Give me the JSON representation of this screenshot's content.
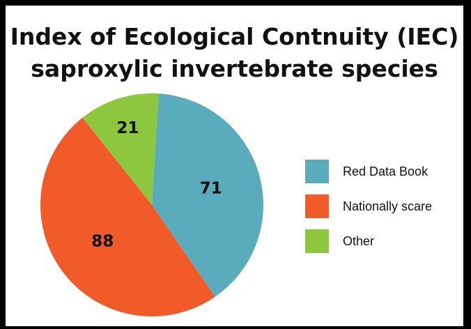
{
  "chart_data": {
    "type": "pie",
    "title_lines": [
      "Index of Ecological Contnuity (IEC)",
      "saproxylic invertebrate species"
    ],
    "categories": [
      "Red Data Book",
      "Nationally scare",
      "Other"
    ],
    "values": [
      71,
      88,
      21
    ],
    "colors": [
      "#5aabbb",
      "#f15a29",
      "#8dc63f"
    ],
    "legend_position": "right",
    "data_labels": [
      "71",
      "88",
      "21"
    ]
  }
}
